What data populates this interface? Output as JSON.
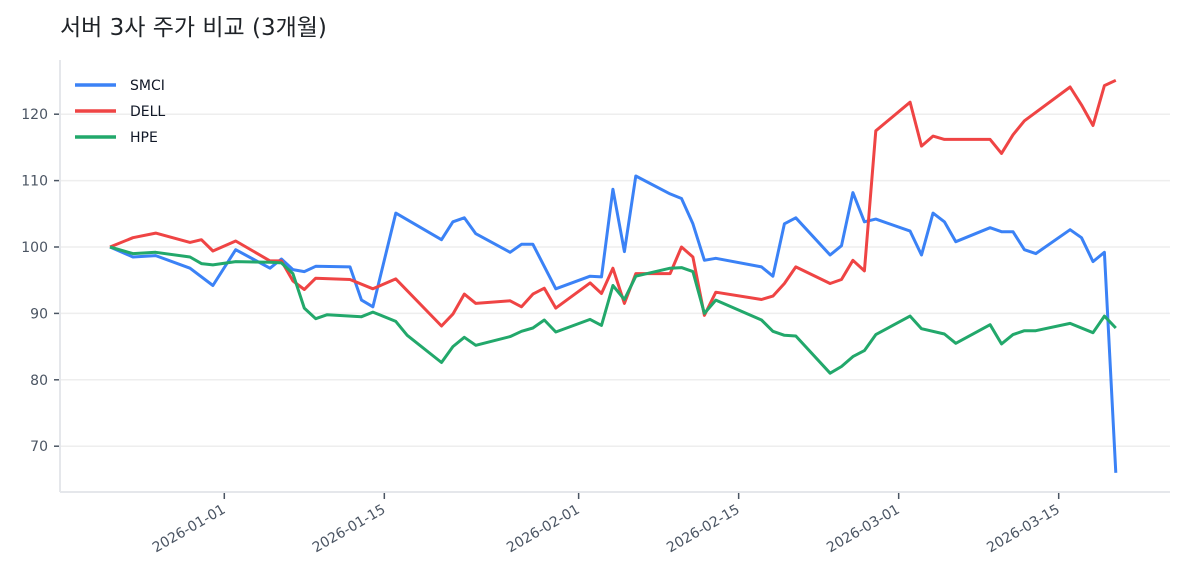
{
  "title": "서버 3사 주가 비교 (3개월)",
  "colors": {
    "SMCI": "#3b82f6",
    "DELL": "#ef4444",
    "HPE": "#22a86b",
    "grid": "#eeeeee",
    "axis": "#e5e7eb",
    "tick": "#4b5563"
  },
  "chart_data": {
    "type": "line",
    "title": "서버 3사 주가 비교 (3개월)",
    "xlabel": "",
    "ylabel": "",
    "ylim": [
      63,
      128
    ],
    "yticks": [
      70,
      80,
      90,
      100,
      110,
      120
    ],
    "xticks": [
      "2026-01-01",
      "2026-01-15",
      "2026-02-01",
      "2026-02-15",
      "2026-03-01",
      "2026-03-15"
    ],
    "grid": "horizontal",
    "legend_position": "upper left",
    "x_range": [
      "2025-12-22",
      "2026-03-20"
    ],
    "series": [
      {
        "name": "SMCI",
        "color": "#3b82f6",
        "points": [
          [
            0,
            100.0
          ],
          [
            2,
            98.5
          ],
          [
            4,
            98.7
          ],
          [
            7,
            96.8
          ],
          [
            9,
            94.2
          ],
          [
            11,
            99.6
          ],
          [
            14,
            96.8
          ],
          [
            15,
            98.2
          ],
          [
            16,
            96.6
          ],
          [
            17,
            96.3
          ],
          [
            18,
            97.1
          ],
          [
            21,
            97.0
          ],
          [
            22,
            92.0
          ],
          [
            23,
            91.0
          ],
          [
            25,
            105.1
          ],
          [
            29,
            101.1
          ],
          [
            30,
            103.8
          ],
          [
            31,
            104.4
          ],
          [
            32,
            102.0
          ],
          [
            35,
            99.2
          ],
          [
            36,
            100.4
          ],
          [
            37,
            100.4
          ],
          [
            39,
            93.7
          ],
          [
            42,
            95.6
          ],
          [
            43,
            95.5
          ],
          [
            44,
            108.7
          ],
          [
            45,
            99.3
          ],
          [
            46,
            110.7
          ],
          [
            49,
            108.0
          ],
          [
            50,
            107.3
          ],
          [
            51,
            103.5
          ],
          [
            52,
            98.0
          ],
          [
            53,
            98.3
          ],
          [
            57,
            97.0
          ],
          [
            58,
            95.6
          ],
          [
            59,
            103.5
          ],
          [
            60,
            104.4
          ],
          [
            63,
            98.8
          ],
          [
            64,
            100.2
          ],
          [
            65,
            108.2
          ],
          [
            66,
            103.8
          ],
          [
            67,
            104.2
          ],
          [
            70,
            102.4
          ],
          [
            71,
            98.8
          ],
          [
            72,
            105.1
          ],
          [
            73,
            103.8
          ],
          [
            74,
            100.8
          ],
          [
            77,
            102.9
          ],
          [
            78,
            102.3
          ],
          [
            79,
            102.3
          ],
          [
            80,
            99.6
          ],
          [
            81,
            99.0
          ],
          [
            84,
            102.6
          ],
          [
            85,
            101.4
          ],
          [
            86,
            97.8
          ],
          [
            87,
            99.2
          ],
          [
            88,
            66.0
          ]
        ]
      },
      {
        "name": "DELL",
        "color": "#ef4444",
        "points": [
          [
            0,
            100.0
          ],
          [
            2,
            101.4
          ],
          [
            4,
            102.1
          ],
          [
            7,
            100.7
          ],
          [
            8,
            101.1
          ],
          [
            9,
            99.4
          ],
          [
            11,
            100.9
          ],
          [
            14,
            97.9
          ],
          [
            15,
            97.9
          ],
          [
            16,
            94.9
          ],
          [
            17,
            93.6
          ],
          [
            18,
            95.3
          ],
          [
            21,
            95.1
          ],
          [
            23,
            93.7
          ],
          [
            25,
            95.2
          ],
          [
            29,
            88.1
          ],
          [
            30,
            89.9
          ],
          [
            31,
            92.9
          ],
          [
            32,
            91.5
          ],
          [
            35,
            91.9
          ],
          [
            36,
            91.0
          ],
          [
            37,
            92.9
          ],
          [
            38,
            93.8
          ],
          [
            39,
            90.8
          ],
          [
            42,
            94.6
          ],
          [
            43,
            93.0
          ],
          [
            44,
            96.8
          ],
          [
            45,
            91.5
          ],
          [
            46,
            96.0
          ],
          [
            49,
            96.0
          ],
          [
            50,
            100.0
          ],
          [
            51,
            98.5
          ],
          [
            52,
            89.7
          ],
          [
            53,
            93.2
          ],
          [
            57,
            92.1
          ],
          [
            58,
            92.6
          ],
          [
            59,
            94.5
          ],
          [
            60,
            97.0
          ],
          [
            63,
            94.5
          ],
          [
            64,
            95.1
          ],
          [
            65,
            98.0
          ],
          [
            66,
            96.4
          ],
          [
            67,
            117.5
          ],
          [
            70,
            121.8
          ],
          [
            71,
            115.2
          ],
          [
            72,
            116.7
          ],
          [
            73,
            116.2
          ],
          [
            77,
            116.2
          ],
          [
            78,
            114.1
          ],
          [
            79,
            116.9
          ],
          [
            80,
            119.0
          ],
          [
            84,
            124.1
          ],
          [
            85,
            121.4
          ],
          [
            86,
            118.3
          ],
          [
            87,
            124.3
          ],
          [
            88,
            125.1
          ]
        ]
      },
      {
        "name": "HPE",
        "color": "#22a86b",
        "points": [
          [
            0,
            100.0
          ],
          [
            2,
            99.0
          ],
          [
            4,
            99.2
          ],
          [
            7,
            98.5
          ],
          [
            8,
            97.5
          ],
          [
            9,
            97.3
          ],
          [
            11,
            97.8
          ],
          [
            14,
            97.7
          ],
          [
            15,
            97.6
          ],
          [
            16,
            96.0
          ],
          [
            17,
            90.8
          ],
          [
            18,
            89.2
          ],
          [
            19,
            89.8
          ],
          [
            22,
            89.5
          ],
          [
            23,
            90.2
          ],
          [
            25,
            88.8
          ],
          [
            26,
            86.7
          ],
          [
            29,
            82.6
          ],
          [
            30,
            85.0
          ],
          [
            31,
            86.4
          ],
          [
            32,
            85.2
          ],
          [
            35,
            86.5
          ],
          [
            36,
            87.3
          ],
          [
            37,
            87.8
          ],
          [
            38,
            89.0
          ],
          [
            39,
            87.2
          ],
          [
            42,
            89.1
          ],
          [
            43,
            88.2
          ],
          [
            44,
            94.2
          ],
          [
            45,
            92.1
          ],
          [
            46,
            95.6
          ],
          [
            49,
            96.8
          ],
          [
            50,
            96.9
          ],
          [
            51,
            96.3
          ],
          [
            52,
            90.0
          ],
          [
            53,
            92.0
          ],
          [
            57,
            89.0
          ],
          [
            58,
            87.3
          ],
          [
            59,
            86.7
          ],
          [
            60,
            86.6
          ],
          [
            63,
            81.0
          ],
          [
            64,
            82.0
          ],
          [
            65,
            83.5
          ],
          [
            66,
            84.4
          ],
          [
            67,
            86.8
          ],
          [
            70,
            89.6
          ],
          [
            71,
            87.7
          ],
          [
            73,
            86.9
          ],
          [
            74,
            85.5
          ],
          [
            77,
            88.3
          ],
          [
            78,
            85.4
          ],
          [
            79,
            86.8
          ],
          [
            80,
            87.4
          ],
          [
            81,
            87.4
          ],
          [
            84,
            88.5
          ],
          [
            86,
            87.1
          ],
          [
            87,
            89.6
          ],
          [
            88,
            87.8
          ]
        ]
      }
    ]
  },
  "legend": {
    "items": [
      "SMCI",
      "DELL",
      "HPE"
    ]
  }
}
